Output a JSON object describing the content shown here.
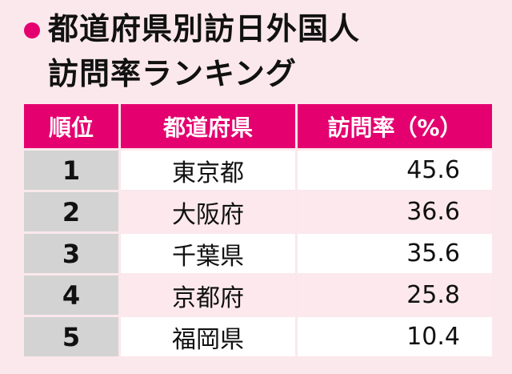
{
  "header": {
    "title": [
      "都道府県別訪日外国人",
      "訪問率ランキング"
    ]
  },
  "table": {
    "columns": [
      "順位",
      "都道府県",
      "訪問率（%）"
    ],
    "rows": [
      [
        "1",
        "東京都",
        "45.6"
      ],
      [
        "2",
        "大阪府",
        "36.6"
      ],
      [
        "3",
        "千葉県",
        "35.6"
      ],
      [
        "4",
        "京都府",
        "25.8"
      ],
      [
        "5",
        "福岡県",
        "10.4"
      ]
    ]
  }
}
